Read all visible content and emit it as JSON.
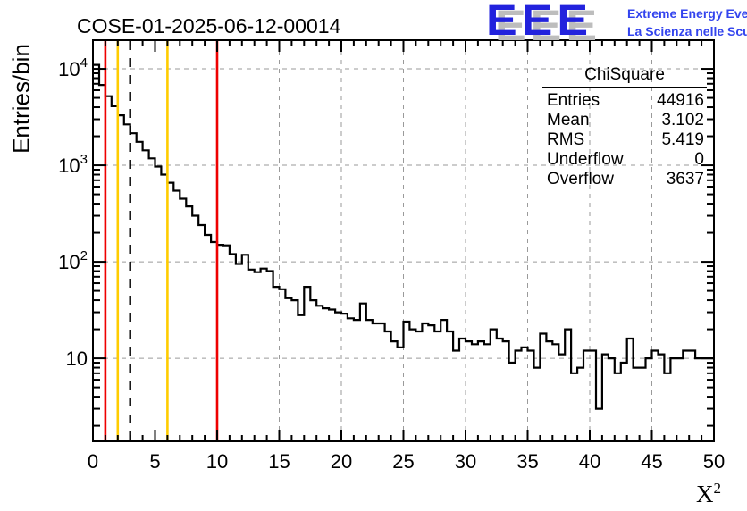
{
  "header": {
    "title": "COSE-01-2025-06-12-00014"
  },
  "logo": {
    "letters": "EEE",
    "line1": "Extreme Energy Events",
    "line2": "La Scienza nelle Scuole",
    "letter_color": "#2222dd",
    "shadow_color": "#bdbdbd",
    "text_color": "#3344ee"
  },
  "stats": {
    "title": "ChiSquare",
    "rows": [
      {
        "label": "Entries",
        "value": "44916"
      },
      {
        "label": "Mean",
        "value": "3.102"
      },
      {
        "label": "RMS",
        "value": "5.419"
      },
      {
        "label": "Underflow",
        "value": "0"
      },
      {
        "label": "Overflow",
        "value": "3637"
      }
    ]
  },
  "axes": {
    "ylabel": "Entries/bin",
    "xlabel_base": "X",
    "xlabel_sup": "2",
    "x_tick_labels": [
      "0",
      "5",
      "10",
      "15",
      "20",
      "25",
      "30",
      "35",
      "40",
      "45",
      "50"
    ],
    "y_tick_labels": [
      {
        "base": "10",
        "sup": ""
      },
      {
        "base": "10",
        "sup": "2"
      },
      {
        "base": "10",
        "sup": "3"
      },
      {
        "base": "10",
        "sup": "4"
      }
    ]
  },
  "chart_data": {
    "type": "bar",
    "subtype": "step-histogram",
    "title": "COSE-01-2025-06-12-00014",
    "xlabel": "X^2",
    "ylabel": "Entries/bin",
    "x_range": [
      0,
      50
    ],
    "y_scale": "log",
    "y_range": [
      1.38,
      19800
    ],
    "bin_width": 0.5,
    "bin_start": 0,
    "values": [
      11000,
      6800,
      5200,
      4100,
      3300,
      2650,
      2150,
      1750,
      1430,
      1180,
      970,
      800,
      660,
      545,
      450,
      375,
      300,
      240,
      190,
      160,
      150,
      148,
      120,
      95,
      118,
      83,
      78,
      85,
      80,
      55,
      52,
      42,
      40,
      28,
      55,
      40,
      35,
      33,
      32,
      30,
      29,
      26,
      25,
      37,
      25,
      23,
      23,
      19,
      15,
      13,
      24,
      20,
      19,
      23,
      22,
      19,
      25,
      19,
      12,
      16,
      15,
      14,
      15,
      14,
      20,
      16,
      15,
      9,
      12,
      13,
      12,
      8,
      18,
      15,
      14,
      11,
      20,
      7,
      8,
      12,
      12,
      3,
      11,
      10,
      7,
      9,
      16,
      8,
      8,
      10,
      12,
      11,
      7,
      10,
      10,
      12,
      12,
      10,
      10,
      10
    ],
    "x_major_ticks": [
      0,
      5,
      10,
      15,
      20,
      25,
      30,
      35,
      40,
      45,
      50
    ],
    "x_minor_step": 1,
    "y_major_ticks": [
      10,
      100,
      1000,
      10000
    ],
    "grid": true,
    "legend_position": "none",
    "marker_lines": [
      {
        "x": 1,
        "color": "#ee0000",
        "style": "solid"
      },
      {
        "x": 2,
        "color": "#ffcc00",
        "style": "solid"
      },
      {
        "x": 3,
        "color": "#000000",
        "style": "dashed"
      },
      {
        "x": 6,
        "color": "#ffcc00",
        "style": "solid"
      },
      {
        "x": 10,
        "color": "#ee0000",
        "style": "solid"
      }
    ],
    "colors": {
      "histogram": "#000000",
      "grid": "#9a9a9a",
      "frame": "#000000"
    }
  }
}
